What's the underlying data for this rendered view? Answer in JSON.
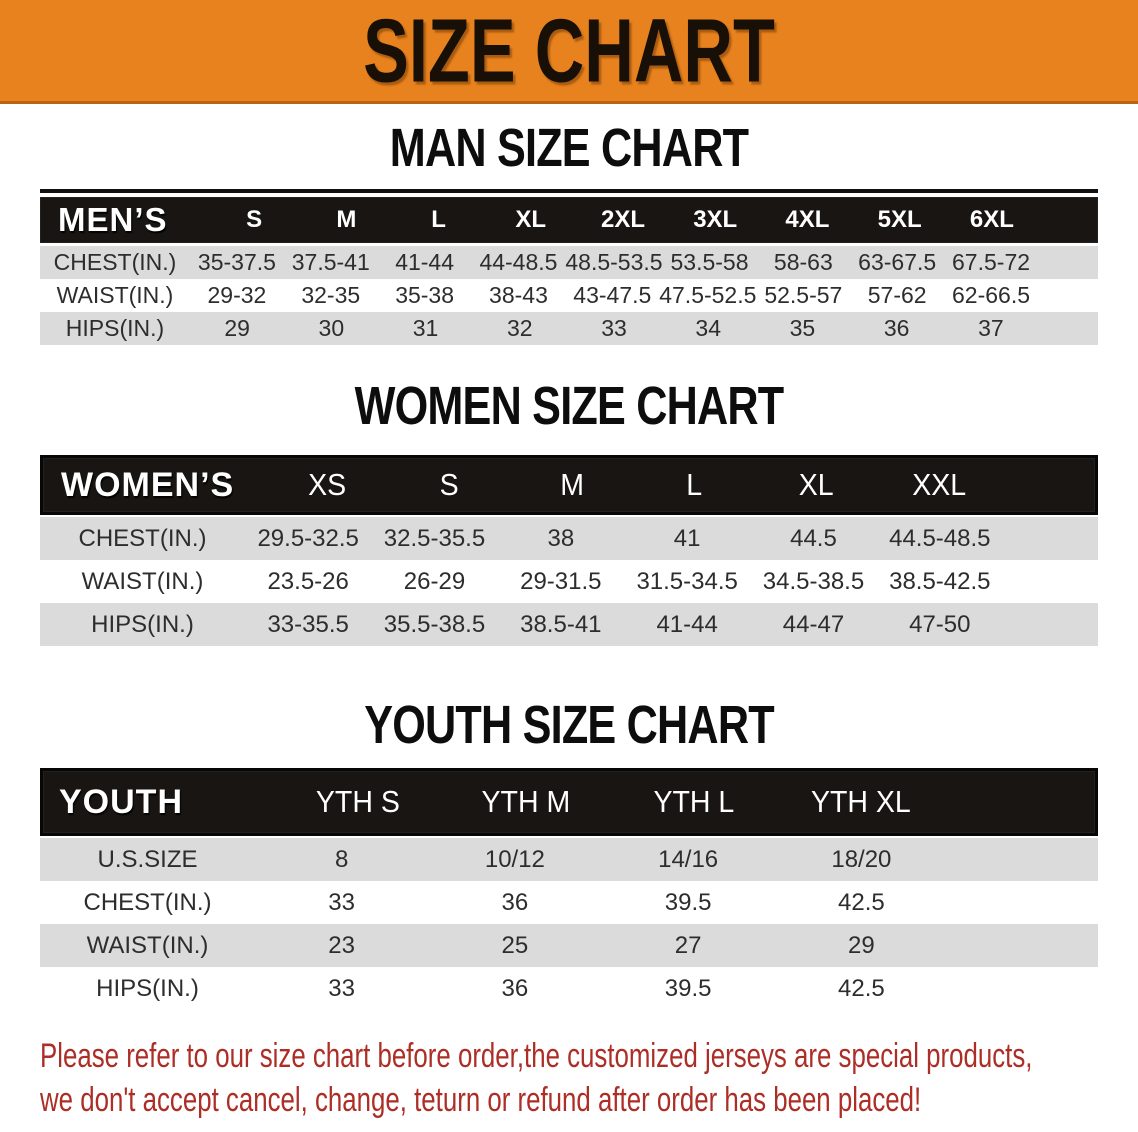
{
  "banner": {
    "title": "SIZE CHART"
  },
  "colors": {
    "banner_bg": "#E8821E",
    "band_bg": "#181512",
    "row_gray": "#DBDBDB",
    "footer_red": "#AC2E26"
  },
  "sections": {
    "men": {
      "heading": "MAN SIZE CHART",
      "label": "MEN’S",
      "sizes": [
        "S",
        "M",
        "L",
        "XL",
        "2XL",
        "3XL",
        "4XL",
        "5XL",
        "6XL"
      ],
      "rows": [
        {
          "label": "CHEST(IN.)",
          "values": [
            "35-37.5",
            "37.5-41",
            "41-44",
            "44-48.5",
            "48.5-53.5",
            "53.5-58",
            "58-63",
            "63-67.5",
            "67.5-72"
          ]
        },
        {
          "label": "WAIST(IN.)",
          "values": [
            "29-32",
            "32-35",
            "35-38",
            "38-43",
            "43-47.5",
            "47.5-52.5",
            "52.5-57",
            "57-62",
            "62-66.5"
          ]
        },
        {
          "label": "HIPS(IN.)",
          "values": [
            "29",
            "30",
            "31",
            "32",
            "33",
            "34",
            "35",
            "36",
            "37"
          ]
        }
      ]
    },
    "women": {
      "heading": "WOMEN SIZE CHART",
      "label": "WOMEN’S",
      "sizes": [
        "XS",
        "S",
        "M",
        "L",
        "XL",
        "XXL"
      ],
      "rows": [
        {
          "label": "CHEST(IN.)",
          "values": [
            "29.5-32.5",
            "32.5-35.5",
            "38",
            "41",
            "44.5",
            "44.5-48.5"
          ]
        },
        {
          "label": "WAIST(IN.)",
          "values": [
            "23.5-26",
            "26-29",
            "29-31.5",
            "31.5-34.5",
            "34.5-38.5",
            "38.5-42.5"
          ]
        },
        {
          "label": "HIPS(IN.)",
          "values": [
            "33-35.5",
            "35.5-38.5",
            "38.5-41",
            "41-44",
            "44-47",
            "47-50"
          ]
        }
      ]
    },
    "youth": {
      "heading": "YOUTH SIZE CHART",
      "label": "YOUTH",
      "sizes": [
        "YTH S",
        "YTH M",
        "YTH L",
        "YTH XL"
      ],
      "rows": [
        {
          "label": "U.S.SIZE",
          "values": [
            "8",
            "10/12",
            "14/16",
            "18/20"
          ]
        },
        {
          "label": "CHEST(IN.)",
          "values": [
            "33",
            "36",
            "39.5",
            "42.5"
          ]
        },
        {
          "label": "WAIST(IN.)",
          "values": [
            "23",
            "25",
            "27",
            "29"
          ]
        },
        {
          "label": "HIPS(IN.)",
          "values": [
            "33",
            "36",
            "39.5",
            "42.5"
          ]
        }
      ]
    }
  },
  "footer": {
    "line1": "Please refer to our size chart before order,the customized jerseys are special products,",
    "line2": "we don't accept cancel, change, teturn or refund after order has been placed!"
  }
}
